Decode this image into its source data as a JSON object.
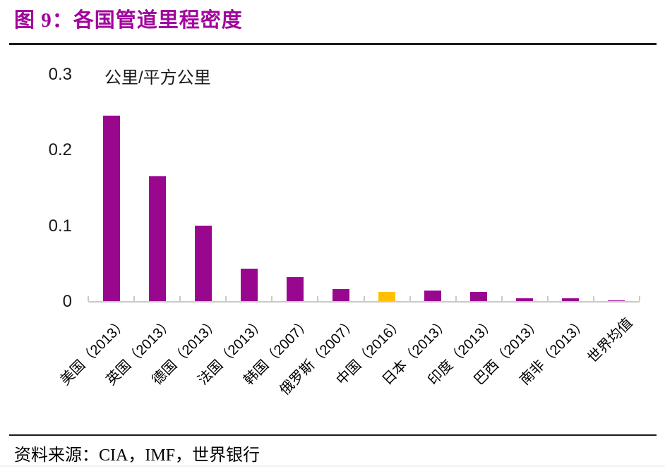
{
  "header": {
    "title": "图 9：各国管道里程密度"
  },
  "footer": {
    "source": "资料来源：CIA，IMF，世界银行"
  },
  "colors": {
    "title": "#A2059D",
    "bar": "#99078F",
    "highlight": "#FFC000",
    "axis": "#C9C9C9",
    "rule_dark": "#1A1A1A",
    "rule_faint": "#F2F2F2",
    "text": "#1A1A1A"
  },
  "chart_data": {
    "type": "bar",
    "title": "图 9：各国管道里程密度",
    "xlabel": "",
    "ylabel": "公里/平方公里",
    "ylim": [
      0,
      0.3
    ],
    "grid": false,
    "legend_position": "none",
    "categories": [
      "美国（2013）",
      "英国（2013）",
      "德国（2013）",
      "法国（2013）",
      "韩国（2007）",
      "俄罗斯（2007）",
      "中国（2016）",
      "日本（2013）",
      "印度（2013）",
      "巴西（2013）",
      "南非（2013）",
      "世界均值"
    ],
    "values": [
      0.245,
      0.165,
      0.1,
      0.043,
      0.032,
      0.016,
      0.012,
      0.014,
      0.012,
      0.004,
      0.004,
      0.001
    ],
    "highlight_index": 6,
    "highlight_color": "#FFC000",
    "bar_color": "#99078F",
    "ytick_values": [
      0,
      0.1,
      0.2,
      0.3
    ],
    "ytick_labels": [
      "0",
      "0.1",
      "0.2",
      "0.3"
    ]
  }
}
